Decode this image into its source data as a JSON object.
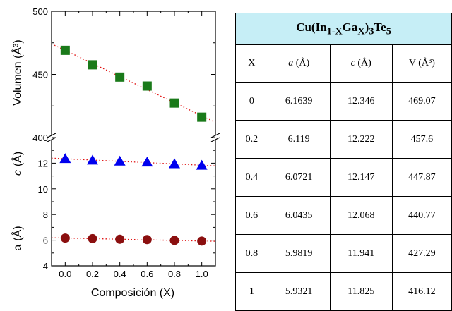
{
  "chart_data": {
    "type": "scatter",
    "xlabel": "Composición (X)",
    "x": [
      0.0,
      0.2,
      0.4,
      0.6,
      0.8,
      1.0
    ],
    "x_ticks": [
      "0.0",
      "0.2",
      "0.4",
      "0.6",
      "0.8",
      "1.0"
    ],
    "xlim": [
      -0.1,
      1.1
    ],
    "panels": [
      {
        "ylabel": "Volumen (Å³)",
        "ylim": [
          400,
          500
        ],
        "y_ticks": [
          400,
          450,
          500
        ],
        "series": [
          {
            "values": [
              469.07,
              457.6,
              447.87,
              440.77,
              427.29,
              416.12
            ],
            "marker": "square",
            "color": "#1a7a1a"
          }
        ]
      },
      {
        "ylabel_a": "a",
        "ylabel_c": "c",
        "ylabel_unit": "(Å)",
        "ylim": [
          4,
          14
        ],
        "y_ticks": [
          4,
          6,
          8,
          10,
          12
        ],
        "series": [
          {
            "values": [
              12.346,
              12.222,
              12.147,
              12.068,
              11.941,
              11.825
            ],
            "marker": "triangle",
            "color": "#0000ee"
          },
          {
            "values": [
              6.1639,
              6.119,
              6.0721,
              6.0435,
              5.9819,
              5.9321
            ],
            "marker": "circle",
            "color": "#8b0f0f"
          }
        ]
      }
    ],
    "fit_line_color": "#e01010"
  },
  "table": {
    "title": {
      "main": "Cu(In",
      "sub1": "1-X",
      "mid": "Ga",
      "sub2": "X",
      "after": ")",
      "sub3": "3",
      "end": "Te",
      "sub4": "5"
    },
    "headers": [
      {
        "var": "X",
        "unit": ""
      },
      {
        "var": "a",
        "unit": " (Å)"
      },
      {
        "var": "c",
        "unit": " (Å)"
      },
      {
        "var": "V",
        "unit": " (Å³)"
      }
    ],
    "rows": [
      [
        "0",
        "6.1639",
        "12.346",
        "469.07"
      ],
      [
        "0.2",
        "6.119",
        "12.222",
        "457.6"
      ],
      [
        "0.4",
        "6.0721",
        "12.147",
        "447.87"
      ],
      [
        "0.6",
        "6.0435",
        "12.068",
        "440.77"
      ],
      [
        "0.8",
        "5.9819",
        "11.941",
        "427.29"
      ],
      [
        "1",
        "5.9321",
        "11.825",
        "416.12"
      ]
    ]
  }
}
